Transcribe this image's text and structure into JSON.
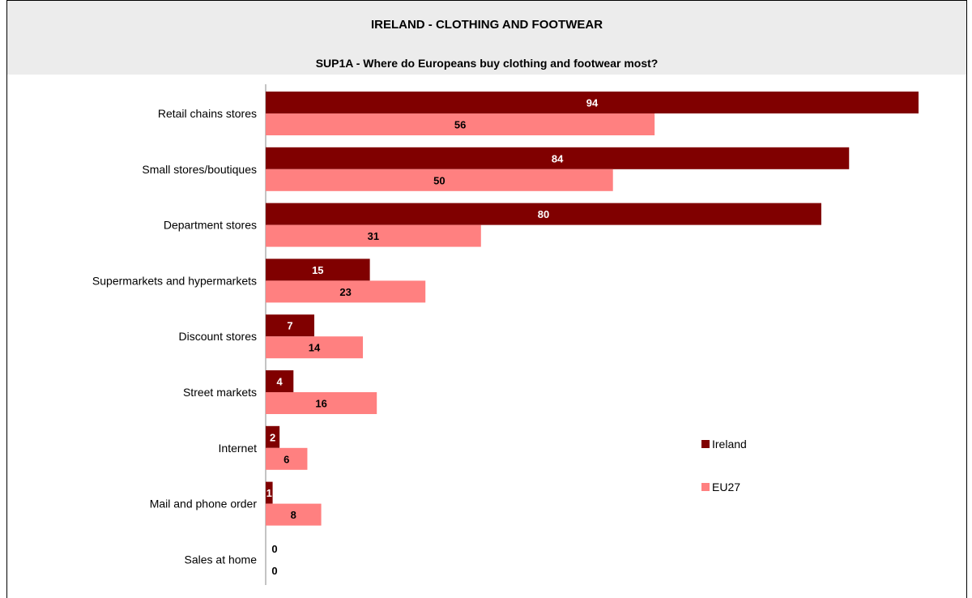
{
  "header": {
    "title": "IRELAND - CLOTHING AND FOOTWEAR",
    "subtitle": "SUP1A - Where do Europeans buy clothing and footwear most?"
  },
  "chart_data": {
    "type": "bar",
    "orientation": "horizontal",
    "title": "IRELAND - CLOTHING AND FOOTWEAR",
    "subtitle": "SUP1A - Where do Europeans buy clothing and footwear most?",
    "categories": [
      "Retail chains stores",
      "Small stores/boutiques",
      "Department stores",
      "Supermarkets and hypermarkets",
      "Discount stores",
      "Street markets",
      "Internet",
      "Mail and phone order",
      "Sales at home"
    ],
    "series": [
      {
        "name": "Ireland",
        "color": "#800000",
        "label_color": "#ffffff",
        "values": [
          94,
          84,
          80,
          15,
          7,
          4,
          2,
          1,
          0
        ]
      },
      {
        "name": "EU27",
        "color": "#ff8080",
        "label_color": "#000000",
        "values": [
          56,
          50,
          31,
          23,
          14,
          16,
          6,
          8,
          0
        ]
      }
    ],
    "xlim": [
      0,
      94
    ],
    "grid": false,
    "legend_position": "right"
  }
}
